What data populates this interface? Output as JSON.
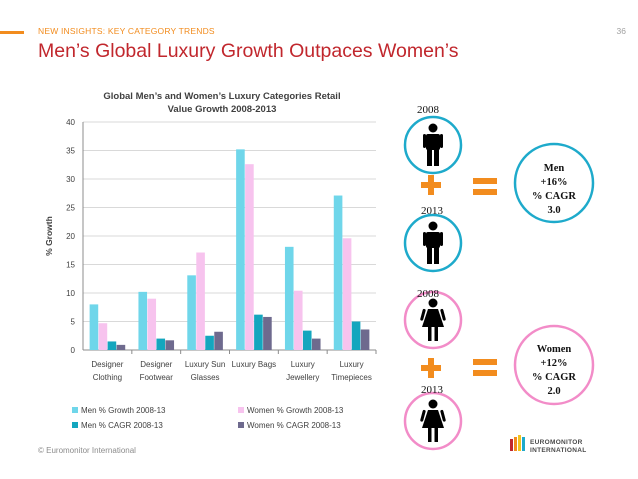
{
  "header": {
    "kicker": "NEW INSIGHTS: KEY CATEGORY TRENDS",
    "page_number": "36",
    "title": "Men’s Global Luxury Growth Outpaces Women’s"
  },
  "footer": {
    "copyright": "© Euromonitor International",
    "logo_line1": "EUROMONITOR",
    "logo_line2": "INTERNATIONAL"
  },
  "chart_data": {
    "type": "bar",
    "title_line1": "Global Men’s and Women’s Luxury Categories Retail",
    "title_line2": "Value Growth 2008-2013",
    "ylabel": "% Growth",
    "xlabel": "",
    "ylim": [
      0,
      40
    ],
    "yticks": [
      0,
      5,
      10,
      15,
      20,
      25,
      30,
      35,
      40
    ],
    "grid": true,
    "legend_position": "bottom",
    "categories": [
      [
        "Designer",
        "Clothing"
      ],
      [
        "Designer",
        "Footwear"
      ],
      [
        "Luxury Sun",
        "Glasses"
      ],
      [
        "Luxury Bags"
      ],
      [
        "Luxury",
        "Jewellery"
      ],
      [
        "Luxury",
        "Timepieces"
      ]
    ],
    "series": [
      {
        "name": "Men % Growth 2008-13",
        "color": "#6fd6ea",
        "values": [
          8.0,
          10.2,
          13.1,
          35.2,
          18.1,
          27.1
        ]
      },
      {
        "name": "Women % Growth 2008-13",
        "color": "#f7c3ee",
        "values": [
          4.7,
          9.0,
          17.1,
          32.6,
          10.4,
          19.6
        ]
      },
      {
        "name": "Men % CAGR 2008-13",
        "color": "#14a6be",
        "values": [
          1.5,
          2.0,
          2.5,
          6.2,
          3.4,
          5.0
        ]
      },
      {
        "name": "Women % CAGR 2008-13",
        "color": "#6e6a8e",
        "values": [
          0.9,
          1.7,
          3.2,
          5.8,
          2.0,
          3.6
        ]
      }
    ]
  },
  "infographic": {
    "men_year_start": "2008",
    "men_year_end": "2013",
    "women_year_start": "2008",
    "women_year_end": "2013",
    "men_summary": [
      "Men",
      "+16%",
      "% CAGR",
      "3.0"
    ],
    "women_summary": [
      "Women",
      "+12%",
      "% CAGR",
      "2.0"
    ],
    "colors": {
      "men_circle": "#1eaacb",
      "women_circle": "#f28cc8",
      "orange": "#f28c1e"
    }
  }
}
